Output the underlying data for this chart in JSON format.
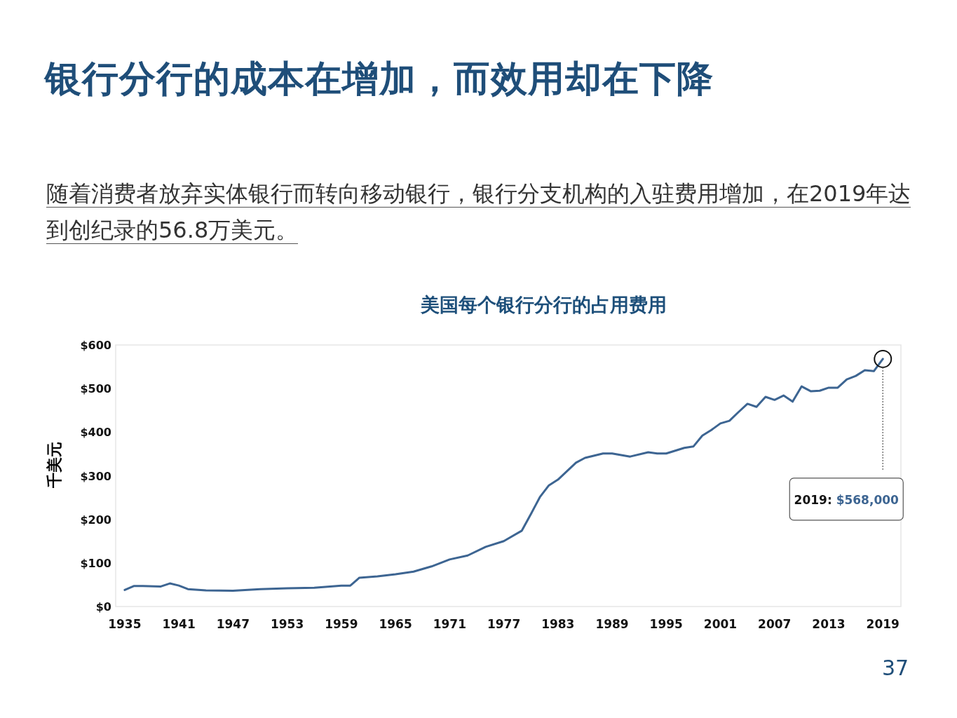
{
  "chart_data": {
    "type": "line",
    "title": "美国每个银行分行的占用费用",
    "ylabel": "千美元",
    "annotations": [
      "银行分行的成本在增加，而效用却在下降",
      "随着消费者放弃实体银行而转向移动银行，银行分支机构的入驻费用增加，在2019年达到创纪录的56.8万美元。",
      "2019: $568,000",
      "37"
    ],
    "series": [
      {
        "color": "#3d6592",
        "x": [
          1935,
          1936,
          1937,
          1939,
          1940,
          1941,
          1942,
          1944,
          1947,
          1950,
          1953,
          1956,
          1959,
          1960,
          1961,
          1963,
          1965,
          1967,
          1969,
          1971,
          1973,
          1975,
          1977,
          1979,
          1980,
          1981,
          1982,
          1983,
          1985,
          1986,
          1988,
          1989,
          1991,
          1993,
          1994,
          1995,
          1997,
          1998,
          1999,
          2000,
          2001,
          2002,
          2003,
          2004,
          2005,
          2006,
          2007,
          2008,
          2009,
          2010,
          2011,
          2012,
          2013,
          2014,
          2015,
          2016,
          2017,
          2018,
          2019
        ],
        "values": [
          38,
          47,
          47,
          46,
          53,
          48,
          40,
          37,
          36,
          40,
          42,
          43,
          48,
          48,
          66,
          69,
          74,
          80,
          92,
          108,
          117,
          137,
          150,
          174,
          212,
          251,
          278,
          291,
          330,
          341,
          351,
          351,
          344,
          354,
          351,
          351,
          364,
          367,
          392,
          405,
          420,
          426,
          446,
          465,
          458,
          481,
          474,
          484,
          470,
          505,
          494,
          495,
          502,
          502,
          521,
          529,
          542,
          540,
          568
        ]
      }
    ],
    "xlim": [
      1934,
      2021
    ],
    "ylim": [
      0,
      600
    ],
    "xticks": [
      1935,
      1941,
      1947,
      1953,
      1959,
      1965,
      1971,
      1977,
      1983,
      1989,
      1995,
      2001,
      2007,
      2013,
      2019
    ],
    "yticks": [
      {
        "value": 0,
        "label": "$0"
      },
      {
        "value": 100,
        "label": "$100"
      },
      {
        "value": 200,
        "label": "$200"
      },
      {
        "value": 300,
        "label": "$300"
      },
      {
        "value": 400,
        "label": "$400"
      },
      {
        "value": 500,
        "label": "$500"
      },
      {
        "value": 600,
        "label": "$600"
      }
    ],
    "grid": false,
    "marker": "none",
    "line_style": "solid"
  }
}
